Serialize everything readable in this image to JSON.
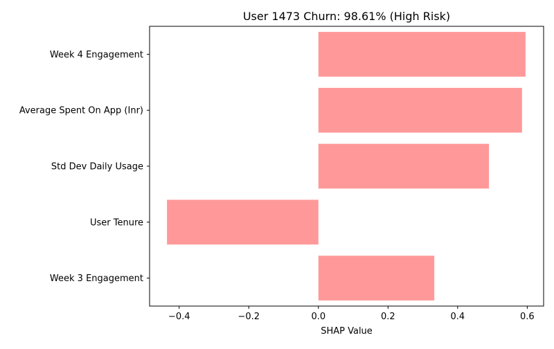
{
  "chart_data": {
    "type": "bar",
    "orientation": "horizontal",
    "title": "User 1473 Churn: 98.61% (High Risk)",
    "xlabel": "SHAP Value",
    "ylabel": "",
    "categories": [
      "Week 4 Engagement",
      "Average Spent On App (Inr)",
      "Std Dev Daily Usage",
      "User Tenure",
      "Week 3 Engagement"
    ],
    "values": [
      0.595,
      0.585,
      0.49,
      -0.435,
      0.333
    ],
    "xlim": [
      -0.485,
      0.647
    ],
    "xticks": [
      -0.4,
      -0.2,
      0.0,
      0.2,
      0.4,
      0.6
    ],
    "xtick_labels": [
      "−0.4",
      "−0.2",
      "0.0",
      "0.2",
      "0.4",
      "0.6"
    ],
    "bar_color": "#ff9999",
    "grid": false,
    "legend": "none"
  }
}
